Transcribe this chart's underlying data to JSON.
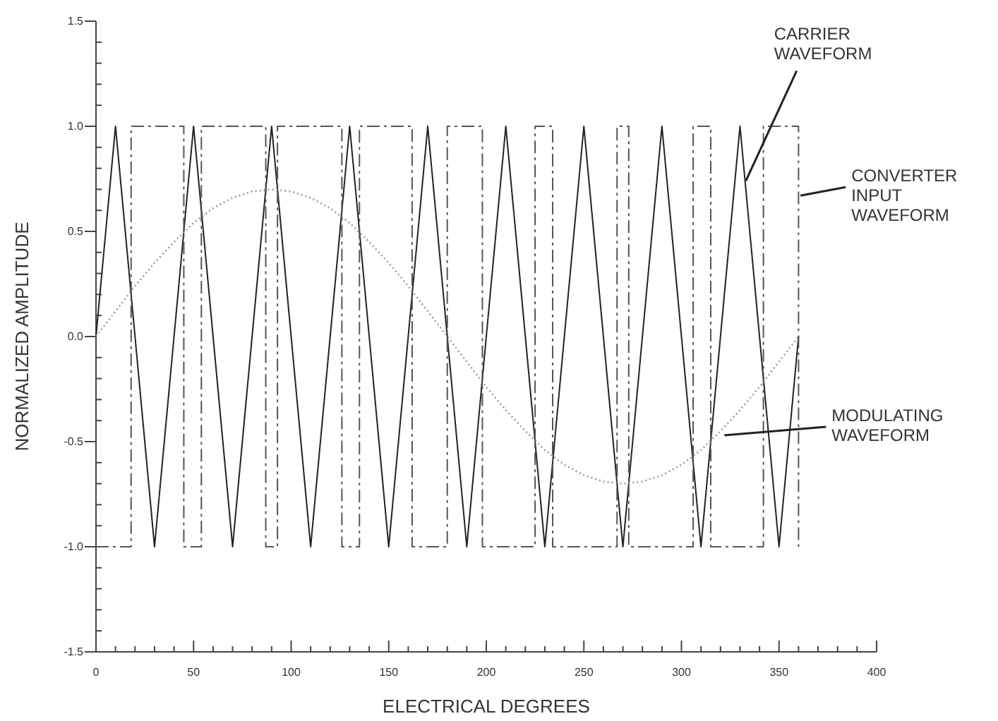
{
  "chart_data": {
    "type": "line",
    "xlabel": "ELECTRICAL DEGREES",
    "ylabel": "NORMALIZED AMPLITUDE",
    "xlim": [
      0,
      400
    ],
    "ylim": [
      -1.5,
      1.5
    ],
    "xticks": [
      0,
      {
        "value": 10,
        "label": null
      },
      {
        "value": 20,
        "label": null
      },
      {
        "value": 30,
        "label": null
      },
      {
        "value": 40,
        "label": null
      },
      50,
      {
        "value": 60,
        "label": null
      },
      {
        "value": 70,
        "label": null
      },
      {
        "value": 80,
        "label": null
      },
      {
        "value": 90,
        "label": null
      },
      100,
      {
        "value": 110,
        "label": null
      },
      {
        "value": 120,
        "label": null
      },
      {
        "value": 130,
        "label": null
      },
      {
        "value": 140,
        "label": null
      },
      150,
      {
        "value": 160,
        "label": null
      },
      {
        "value": 170,
        "label": null
      },
      {
        "value": 180,
        "label": null
      },
      {
        "value": 190,
        "label": null
      },
      200,
      {
        "value": 210,
        "label": null
      },
      {
        "value": 220,
        "label": null
      },
      {
        "value": 230,
        "label": null
      },
      {
        "value": 240,
        "label": null
      },
      250,
      {
        "value": 260,
        "label": null
      },
      {
        "value": 270,
        "label": null
      },
      {
        "value": 280,
        "label": null
      },
      {
        "value": 290,
        "label": null
      },
      300,
      {
        "value": 310,
        "label": null
      },
      {
        "value": 320,
        "label": null
      },
      {
        "value": 330,
        "label": null
      },
      {
        "value": 340,
        "label": null
      },
      350,
      {
        "value": 360,
        "label": null
      },
      {
        "value": 370,
        "label": null
      },
      {
        "value": 380,
        "label": null
      },
      {
        "value": 390,
        "label": null
      },
      400
    ],
    "yticks": [
      {
        "value": -1.5,
        "label": "-1.5"
      },
      {
        "value": -1.4,
        "label": null
      },
      {
        "value": -1.3,
        "label": null
      },
      {
        "value": -1.2,
        "label": null
      },
      {
        "value": -1.1,
        "label": null
      },
      {
        "value": -1,
        "label": "-1.0"
      },
      {
        "value": -0.9,
        "label": null
      },
      {
        "value": -0.8,
        "label": null
      },
      {
        "value": -0.7,
        "label": null
      },
      {
        "value": -0.6,
        "label": null
      },
      -0.5,
      {
        "value": -0.4,
        "label": null
      },
      {
        "value": -0.3,
        "label": null
      },
      {
        "value": -0.2,
        "label": null
      },
      {
        "value": -0.1,
        "label": null
      },
      {
        "value": 0,
        "label": "0.0"
      },
      {
        "value": 0.1,
        "label": null
      },
      {
        "value": 0.2,
        "label": null
      },
      {
        "value": 0.3,
        "label": null
      },
      {
        "value": 0.4,
        "label": null
      },
      0.5,
      {
        "value": 0.6,
        "label": null
      },
      {
        "value": 0.7,
        "label": null
      },
      {
        "value": 0.8,
        "label": null
      },
      {
        "value": 0.9,
        "label": null
      },
      {
        "value": 1,
        "label": "1.0"
      },
      {
        "value": 1.1,
        "label": null
      },
      {
        "value": 1.2,
        "label": null
      },
      {
        "value": 1.3,
        "label": null
      },
      {
        "value": 1.4,
        "label": null
      },
      1.5
    ],
    "grid": false,
    "series": [
      {
        "color": "#222222",
        "line_style": "solid",
        "x": [
          0,
          10,
          30,
          50,
          70,
          90,
          110,
          130,
          150,
          170,
          190,
          210,
          230,
          250,
          270,
          290,
          310,
          330,
          350,
          360
        ],
        "values": [
          0,
          1,
          -1,
          1,
          -1,
          1,
          -1,
          1,
          -1,
          1,
          -1,
          1,
          -1,
          1,
          -1,
          1,
          -1,
          1,
          -1,
          0
        ]
      },
      {
        "color": "#999999",
        "line_style": "dotted",
        "x": [
          0,
          10,
          20,
          30,
          40,
          50,
          60,
          70,
          80,
          90,
          100,
          110,
          120,
          130,
          140,
          150,
          160,
          170,
          180,
          190,
          200,
          210,
          220,
          230,
          240,
          250,
          260,
          270,
          280,
          290,
          300,
          310,
          320,
          330,
          340,
          350,
          360
        ],
        "values": [
          0,
          0.12,
          0.24,
          0.35,
          0.45,
          0.54,
          0.61,
          0.66,
          0.69,
          0.7,
          0.69,
          0.66,
          0.61,
          0.54,
          0.45,
          0.35,
          0.24,
          0.12,
          0,
          -0.12,
          -0.24,
          -0.35,
          -0.45,
          -0.54,
          -0.61,
          -0.66,
          -0.69,
          -0.7,
          -0.69,
          -0.66,
          -0.61,
          -0.54,
          -0.45,
          -0.35,
          -0.24,
          -0.12,
          0
        ]
      },
      {
        "type": "step",
        "color": "#555555",
        "line_style": "dashed",
        "x": [
          0,
          18,
          45,
          54,
          87,
          93,
          126,
          135,
          162,
          180,
          198,
          225,
          234,
          267,
          273,
          306,
          315,
          342,
          360
        ],
        "values": [
          -1,
          1,
          -1,
          1,
          -1,
          1,
          -1,
          1,
          -1,
          1,
          -1,
          1,
          -1,
          1,
          -1,
          1,
          -1,
          1,
          -1
        ]
      }
    ],
    "annotations": [
      {
        "text": "CARRIER\nWAVEFORM",
        "x": 333,
        "y": 0.74
      },
      {
        "text": "CONVERTER\nINPUT\nWAVEFORM",
        "x": 361,
        "y": 0.67
      },
      {
        "text": "MODULATING\nWAVEFORM",
        "x": 322,
        "y": -0.47
      }
    ]
  }
}
